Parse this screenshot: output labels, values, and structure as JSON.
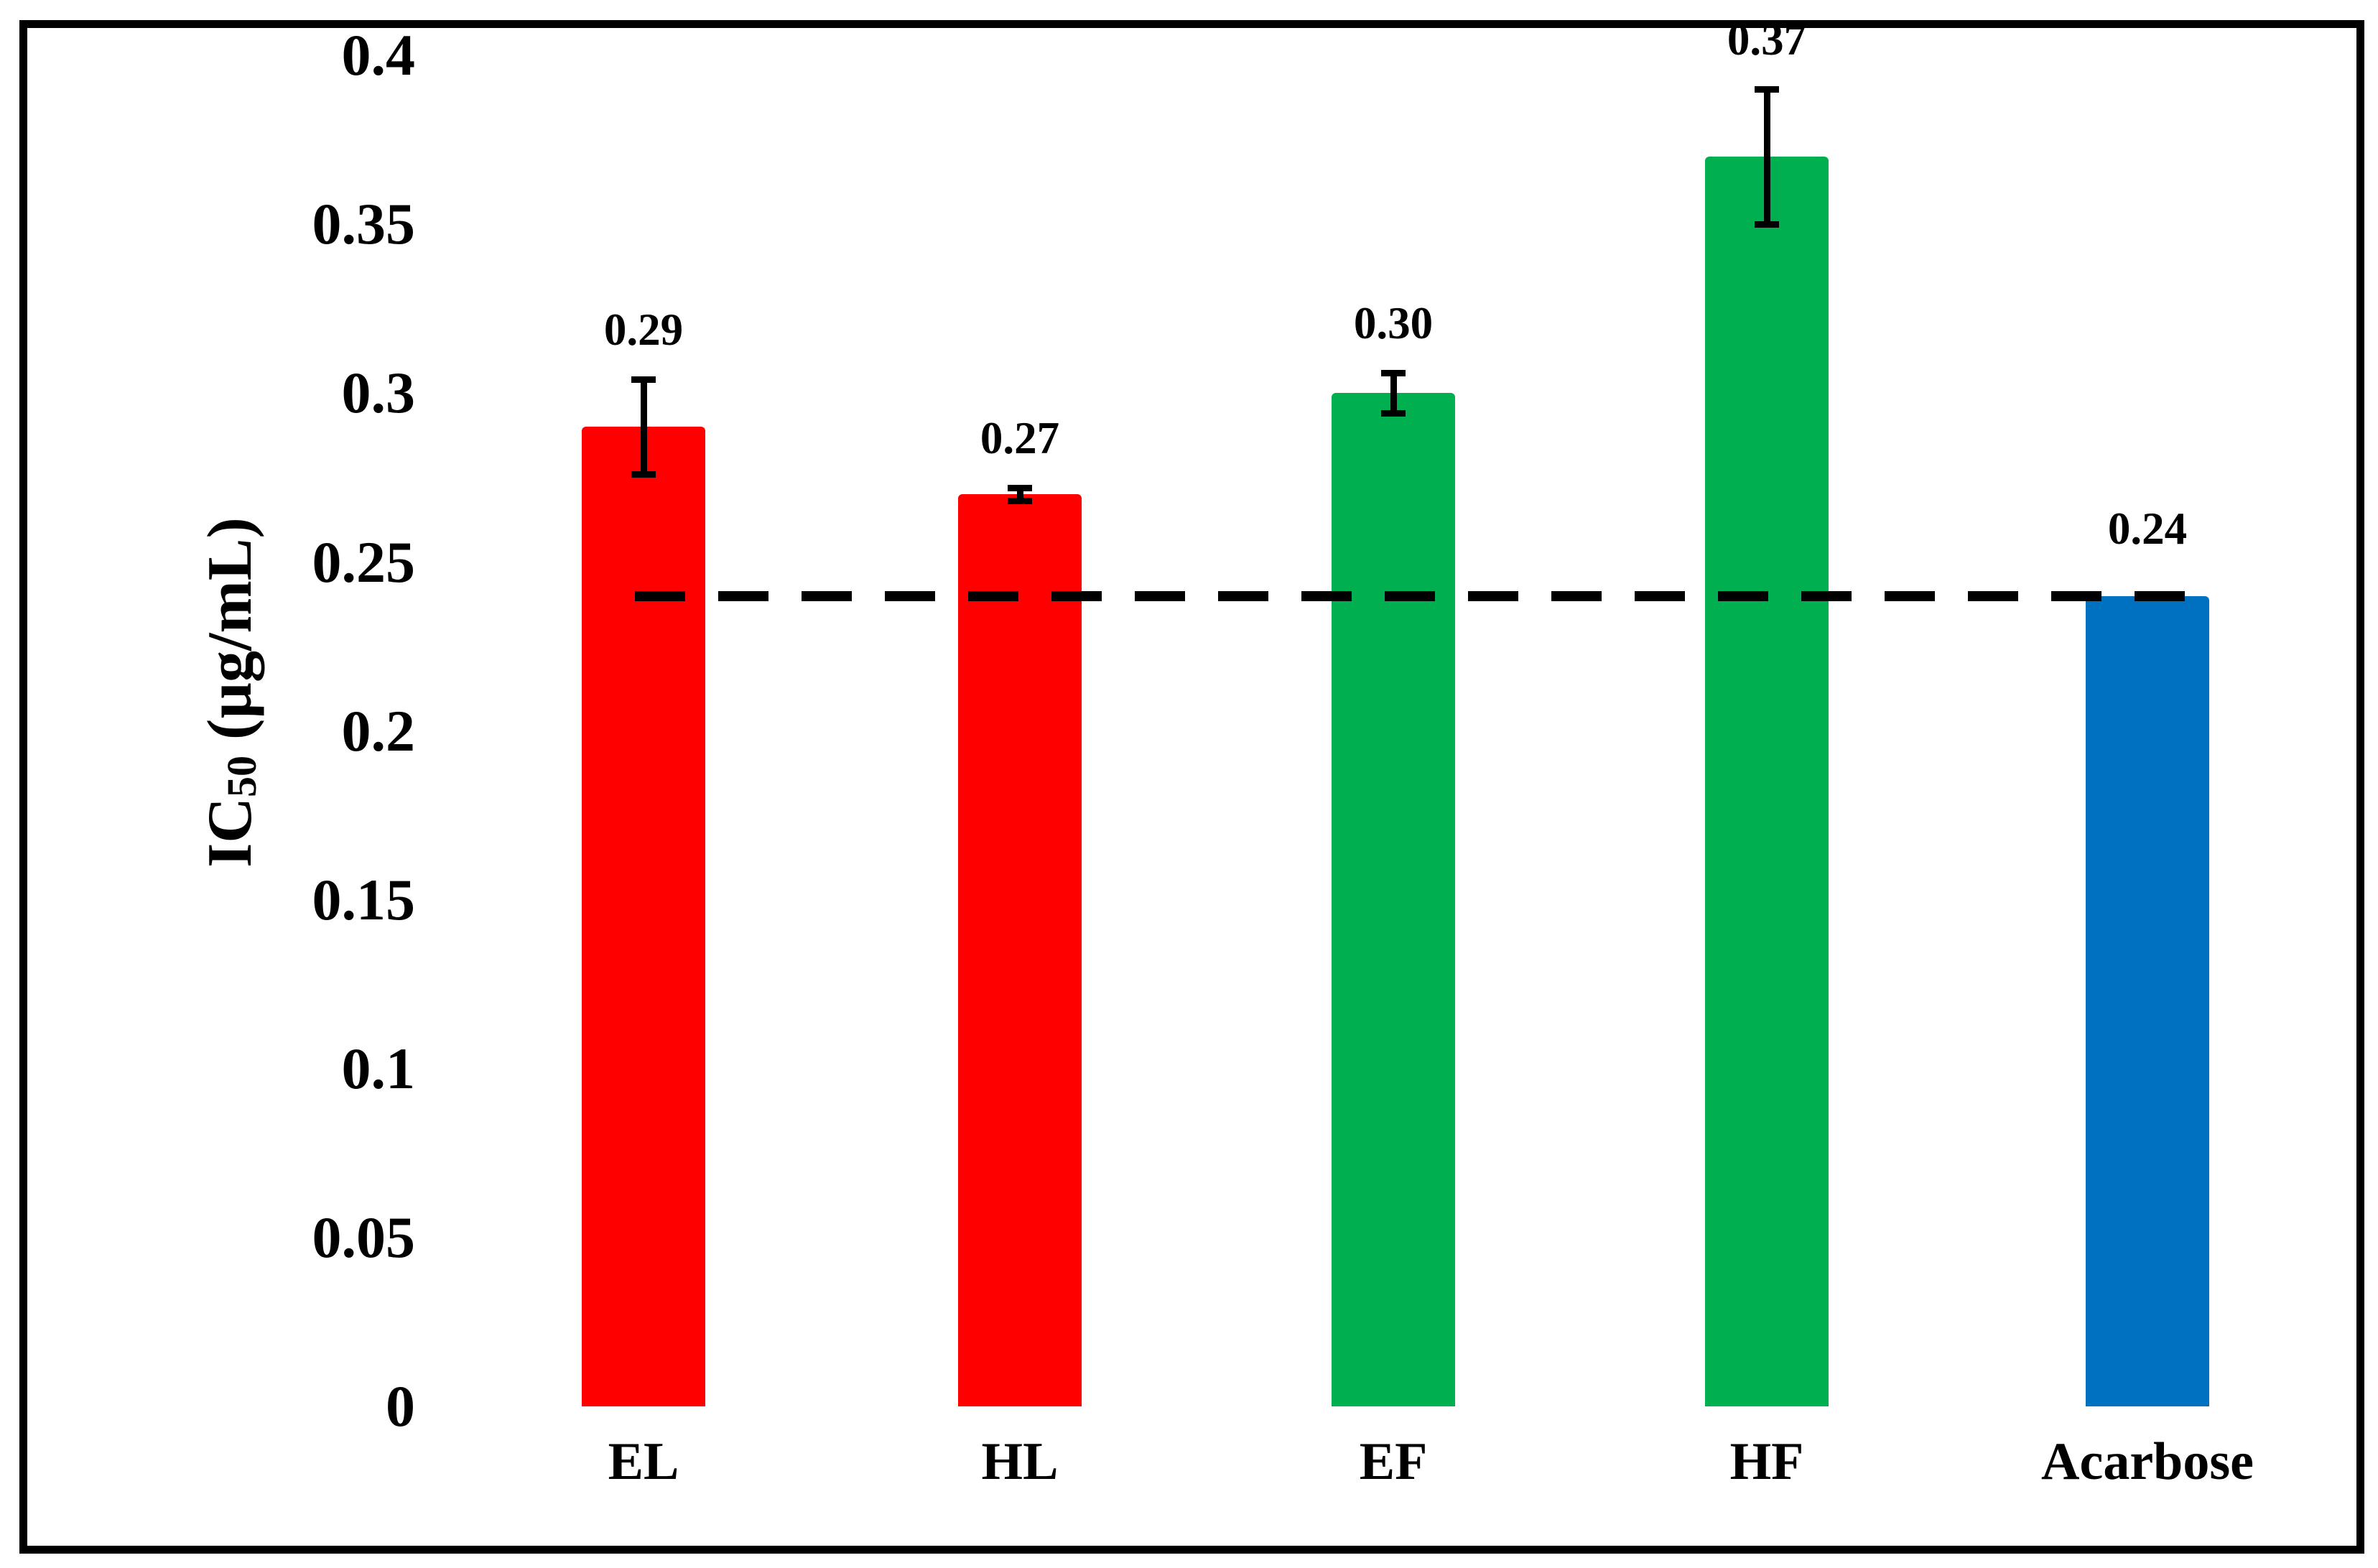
{
  "figure": {
    "background_color": "#ffffff",
    "border_color": "#000000"
  },
  "y_axis": {
    "title": {
      "prefix": "IC",
      "subscript": "50",
      "suffix": " (µg/mL)"
    }
  },
  "chart_data": {
    "type": "bar",
    "title": "",
    "xlabel": "",
    "ylabel": "IC50 (µg/mL)",
    "ylim": [
      0,
      0.4
    ],
    "grid": false,
    "legend": false,
    "categories": [
      "EL",
      "HL",
      "EF",
      "HF",
      "Acarbose"
    ],
    "values": [
      0.29,
      0.27,
      0.3,
      0.37,
      0.24
    ],
    "value_labels": [
      "0.29",
      "0.27",
      "0.30",
      "0.37",
      "0.24"
    ],
    "errors": [
      0.014,
      0.002,
      0.006,
      0.02,
      0
    ],
    "bar_colors": [
      "#FF0000",
      "#FF0000",
      "#00B050",
      "#00B050",
      "#0070C0"
    ],
    "error_bar_color": "#000000",
    "yticks": [
      {
        "label": "0.4",
        "value": 0.4
      },
      {
        "label": "0.35",
        "value": 0.35
      },
      {
        "label": "0.3",
        "value": 0.3
      },
      {
        "label": "0.25",
        "value": 0.25
      },
      {
        "label": "0.2",
        "value": 0.2
      },
      {
        "label": "0.15",
        "value": 0.15
      },
      {
        "label": "0.1",
        "value": 0.1
      },
      {
        "label": "0.05",
        "value": 0.05
      },
      {
        "label": "0",
        "value": 0
      }
    ],
    "reference_line": {
      "value": 0.24,
      "style": "dashed",
      "color": "#000000"
    }
  }
}
